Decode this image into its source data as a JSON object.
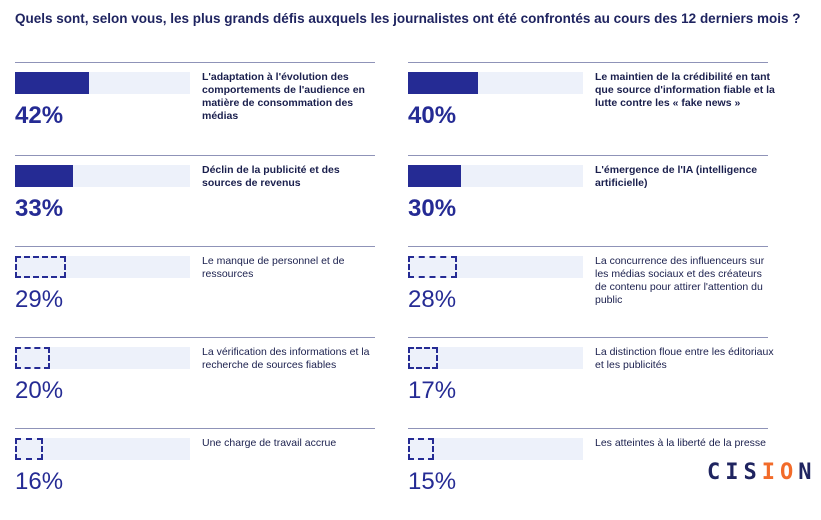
{
  "chart_data": {
    "type": "bar",
    "title": "Quels sont, selon vous, les plus grands défis auxquels les journalistes ont été confrontés au cours des 12 derniers mois ?",
    "xlim": [
      0,
      100
    ],
    "items": [
      {
        "label": "L'adaptation à l'évolution des comportements de l'audience en matière de consommation des médias",
        "value": 42,
        "display": "42%",
        "highlight": true
      },
      {
        "label": "Le maintien de la crédibilité en tant que source d'information fiable et la lutte contre les « fake news »",
        "value": 40,
        "display": "40%",
        "highlight": true
      },
      {
        "label": "Déclin de la publicité et des sources de revenus",
        "value": 33,
        "display": "33%",
        "highlight": true
      },
      {
        "label": "L'émergence de l'IA (intelligence artificielle)",
        "value": 30,
        "display": "30%",
        "highlight": true
      },
      {
        "label": "Le manque de personnel et de ressources",
        "value": 29,
        "display": "29%",
        "highlight": false
      },
      {
        "label": "La concurrence des influenceurs sur les médias sociaux et des créateurs de contenu pour attirer l'attention du public",
        "value": 28,
        "display": "28%",
        "highlight": false
      },
      {
        "label": "La vérification des informations et la recherche de sources fiables",
        "value": 20,
        "display": "20%",
        "highlight": false
      },
      {
        "label": "La distinction floue entre les éditoriaux et les publicités",
        "value": 17,
        "display": "17%",
        "highlight": false
      },
      {
        "label": "Une charge de travail accrue",
        "value": 16,
        "display": "16%",
        "highlight": false
      },
      {
        "label": "Les atteintes à la liberté de la presse",
        "value": 15,
        "display": "15%",
        "highlight": false
      }
    ]
  },
  "brand": {
    "logo": "CISION",
    "accent": "#252b94",
    "orange": "#f26b2a"
  }
}
